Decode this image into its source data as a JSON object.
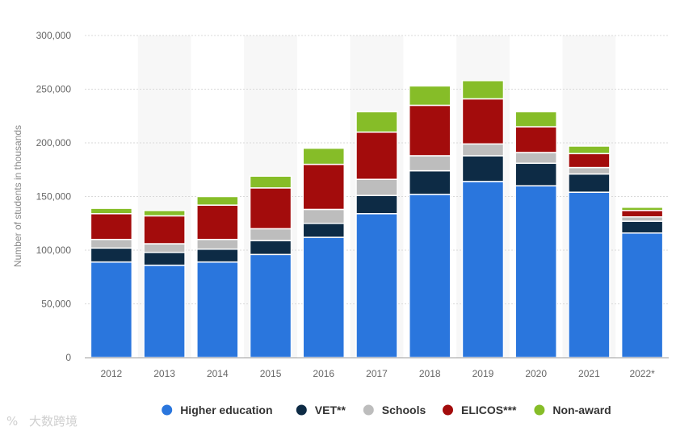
{
  "chart_data": {
    "type": "bar",
    "stacked": true,
    "categories": [
      "2012",
      "2013",
      "2014",
      "2015",
      "2016",
      "2017",
      "2018",
      "2019",
      "2020",
      "2021",
      "2022*"
    ],
    "series": [
      {
        "name": "Higher education",
        "color": "#2a76dd",
        "values": [
          89,
          86,
          89,
          96,
          112,
          134,
          152,
          164,
          160,
          154,
          116
        ]
      },
      {
        "name": "VET**",
        "color": "#0d2b45",
        "values": [
          13,
          12,
          12,
          13,
          13,
          17,
          22,
          24,
          21,
          17,
          11
        ]
      },
      {
        "name": "Schools",
        "color": "#bdbdbd",
        "values": [
          8,
          8,
          9,
          11,
          13,
          15,
          14,
          11,
          10,
          6,
          4
        ]
      },
      {
        "name": "ELICOS***",
        "color": "#a30c0c",
        "values": [
          24,
          26,
          32,
          38,
          42,
          44,
          47,
          42,
          24,
          13,
          6
        ]
      },
      {
        "name": "Non-award",
        "color": "#86bd28",
        "values": [
          5,
          5,
          8,
          11,
          15,
          19,
          18,
          17,
          14,
          7,
          3
        ]
      }
    ],
    "ylabel": "Number of students in thousands",
    "xlabel": "",
    "ylim": [
      0,
      300000
    ],
    "yticks": [
      0,
      50000,
      100000,
      150000,
      200000,
      250000,
      300000
    ],
    "ytick_labels": [
      "0",
      "50,000",
      "100,000",
      "150,000",
      "200,000",
      "250,000",
      "300,000"
    ],
    "grid": true,
    "legend_position": "bottom"
  },
  "watermark": "大数跨境",
  "watermark_prefix": "%"
}
